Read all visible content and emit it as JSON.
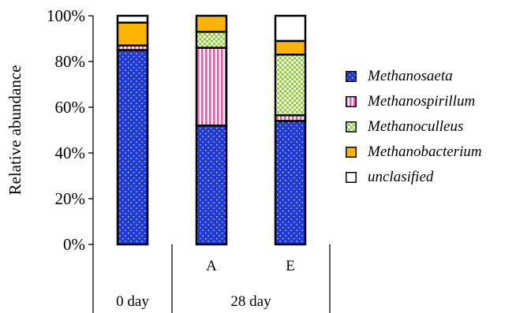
{
  "chart_data": {
    "type": "bar",
    "stacked": true,
    "ylabel": "Relative abundance",
    "ylim": [
      0,
      100
    ],
    "yticks": [
      "0%",
      "20%",
      "40%",
      "60%",
      "80%",
      "100%"
    ],
    "yticks_values": [
      0,
      20,
      40,
      60,
      80,
      100
    ],
    "categories": [
      "",
      "A",
      "E"
    ],
    "groups": [
      {
        "label": "0 day",
        "span": 1
      },
      {
        "label": "28 day",
        "span": 2
      }
    ],
    "series": [
      {
        "name": "Methanosaeta",
        "values": [
          85,
          52,
          54
        ],
        "color": "#1f3ad6",
        "pattern": "dots"
      },
      {
        "name": "Methanospirillum",
        "values": [
          2,
          34,
          2.5
        ],
        "color": "#ff4fa3",
        "pattern": "vstripes"
      },
      {
        "name": "Methanoculleus",
        "values": [
          0,
          7,
          26.5
        ],
        "color": "#7ed321",
        "pattern": "checker"
      },
      {
        "name": "Methanobacterium",
        "values": [
          10,
          7,
          6
        ],
        "color": "#ffb400",
        "pattern": "solid"
      },
      {
        "name": "unclasified",
        "values": [
          3,
          0,
          11
        ],
        "color": "#ffffff",
        "pattern": "none"
      }
    ],
    "legend_position": "right"
  }
}
